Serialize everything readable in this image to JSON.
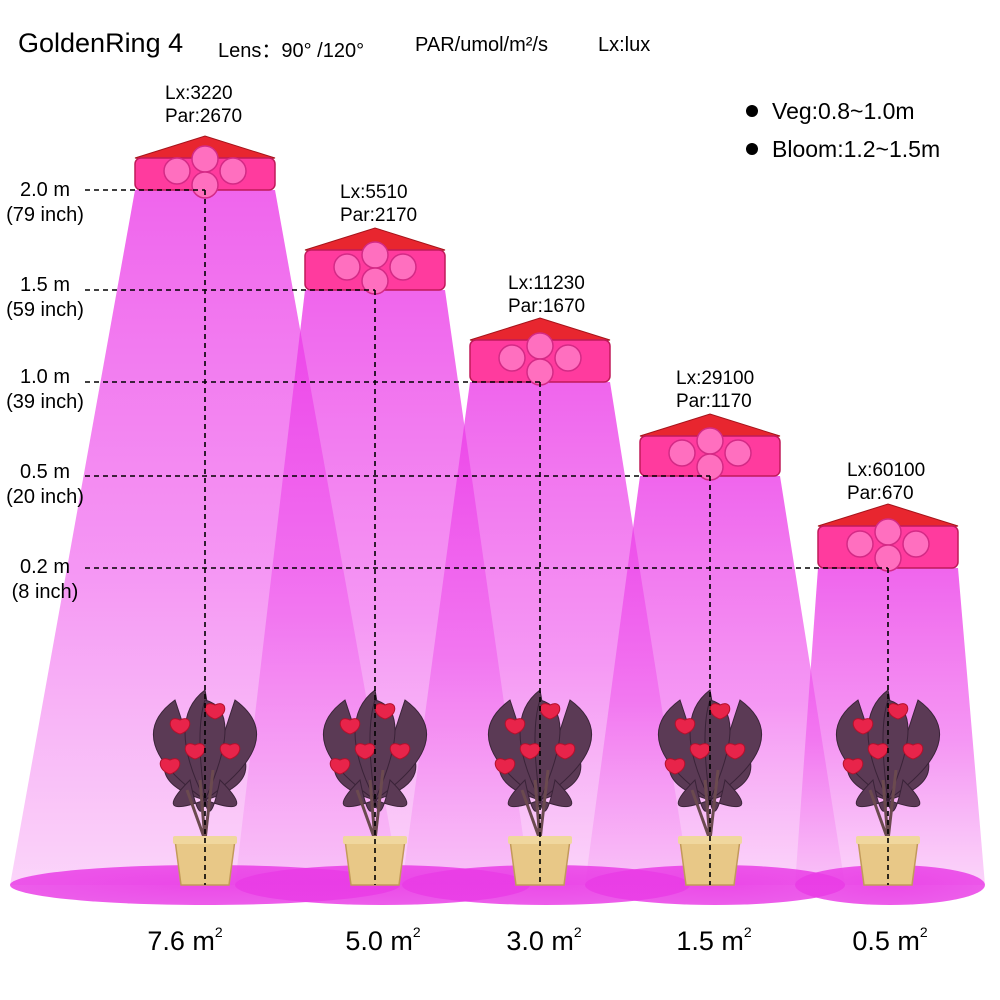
{
  "header": {
    "title": "GoldenRing 4",
    "lens": "Lens：90° /120°",
    "par_unit": "PAR/umol/m²/s",
    "lux_unit": "Lx:lux"
  },
  "legend": [
    {
      "label": "Veg:0.8~1.0m"
    },
    {
      "label": "Bloom:1.2~1.5m"
    }
  ],
  "heights": [
    {
      "metric": "2.0 m",
      "imperial": "(79 inch)"
    },
    {
      "metric": "1.5 m",
      "imperial": "(59 inch)"
    },
    {
      "metric": "1.0 m",
      "imperial": "(39 inch)"
    },
    {
      "metric": "0.5 m",
      "imperial": "(20 inch)"
    },
    {
      "metric": "0.2 m",
      "imperial": "(8 inch)"
    }
  ],
  "lamps": [
    {
      "lx": "Lx:3220",
      "par": "Par:2670",
      "area": "7.6 m",
      "area_unit": "2"
    },
    {
      "lx": "Lx:5510",
      "par": "Par:2170",
      "area": "5.0 m",
      "area_unit": "2"
    },
    {
      "lx": "Lx:11230",
      "par": "Par:1670",
      "area": "3.0 m",
      "area_unit": "2"
    },
    {
      "lx": "Lx:29100",
      "par": "Par:1170",
      "area": "1.5 m",
      "area_unit": "2"
    },
    {
      "lx": "Lx:60100",
      "par": "Par:670",
      "area": "0.5 m",
      "area_unit": "2"
    }
  ],
  "colors": {
    "beam": "#f24ff0",
    "lamp_body": "#e8262f",
    "led_panel": "#ff3b9e",
    "pot": "#e8c887",
    "flower": "#e8244a",
    "leaf": "#5b3a55"
  },
  "icons": {
    "lamp": "grow-light-icon",
    "plant": "potted-anthurium-icon",
    "legend_dot": "bullet-icon"
  }
}
